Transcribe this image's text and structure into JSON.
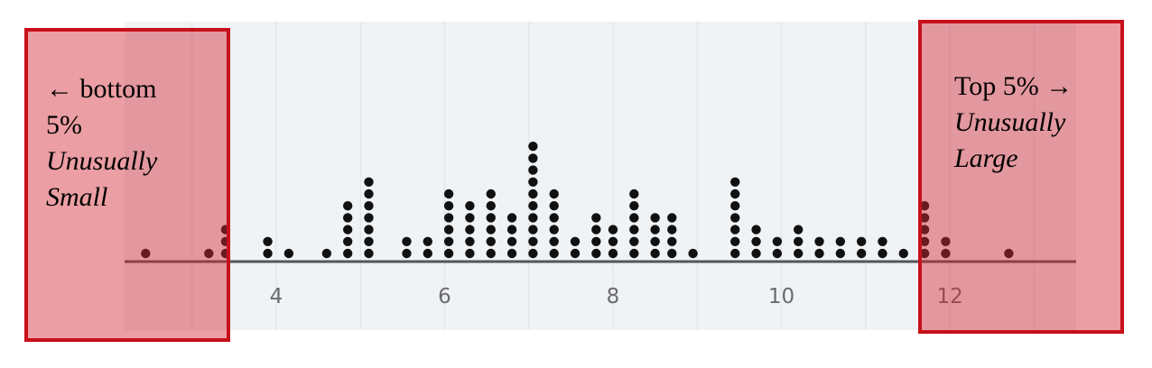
{
  "chart_data": {
    "type": "dot",
    "xlim": [
      2.2,
      13.5
    ],
    "xticks": [
      4,
      6,
      8,
      10,
      12
    ],
    "tick_labels": [
      "4",
      "6",
      "8",
      "10",
      "12"
    ],
    "grid": true,
    "points": [
      {
        "x": 2.45,
        "count": 1
      },
      {
        "x": 3.2,
        "count": 1
      },
      {
        "x": 3.4,
        "count": 3
      },
      {
        "x": 3.9,
        "count": 2
      },
      {
        "x": 4.15,
        "count": 1
      },
      {
        "x": 4.6,
        "count": 1
      },
      {
        "x": 4.85,
        "count": 5
      },
      {
        "x": 5.1,
        "count": 7
      },
      {
        "x": 5.55,
        "count": 2
      },
      {
        "x": 5.8,
        "count": 2
      },
      {
        "x": 6.05,
        "count": 6
      },
      {
        "x": 6.3,
        "count": 5
      },
      {
        "x": 6.55,
        "count": 6
      },
      {
        "x": 6.8,
        "count": 4
      },
      {
        "x": 7.05,
        "count": 10
      },
      {
        "x": 7.3,
        "count": 6
      },
      {
        "x": 7.55,
        "count": 2
      },
      {
        "x": 7.8,
        "count": 4
      },
      {
        "x": 8.0,
        "count": 3
      },
      {
        "x": 8.25,
        "count": 6
      },
      {
        "x": 8.5,
        "count": 4
      },
      {
        "x": 8.7,
        "count": 4
      },
      {
        "x": 8.95,
        "count": 1
      },
      {
        "x": 9.45,
        "count": 7
      },
      {
        "x": 9.7,
        "count": 3
      },
      {
        "x": 9.95,
        "count": 2
      },
      {
        "x": 10.2,
        "count": 3
      },
      {
        "x": 10.45,
        "count": 2
      },
      {
        "x": 10.7,
        "count": 2
      },
      {
        "x": 10.95,
        "count": 2
      },
      {
        "x": 11.2,
        "count": 2
      },
      {
        "x": 11.45,
        "count": 1
      },
      {
        "x": 11.7,
        "count": 5
      },
      {
        "x": 11.95,
        "count": 2
      },
      {
        "x": 12.7,
        "count": 1
      }
    ],
    "dot_color": "#111111"
  },
  "annotations": {
    "left": {
      "arrow": "←",
      "line1": "bottom",
      "line2": "5%",
      "line3": "Unusually",
      "line4": "Small",
      "range": [
        2.2,
        3.45
      ]
    },
    "right": {
      "line1": "Top 5%",
      "arrow": "→",
      "line2": "Unusually",
      "line3": "Large",
      "range": [
        11.65,
        13.5
      ]
    }
  },
  "colors": {
    "highlight_fill": "rgba(210,40,50,0.45)",
    "highlight_border": "#c8101a",
    "plot_background": "#f0f3f6",
    "axis_line": "#555555"
  }
}
